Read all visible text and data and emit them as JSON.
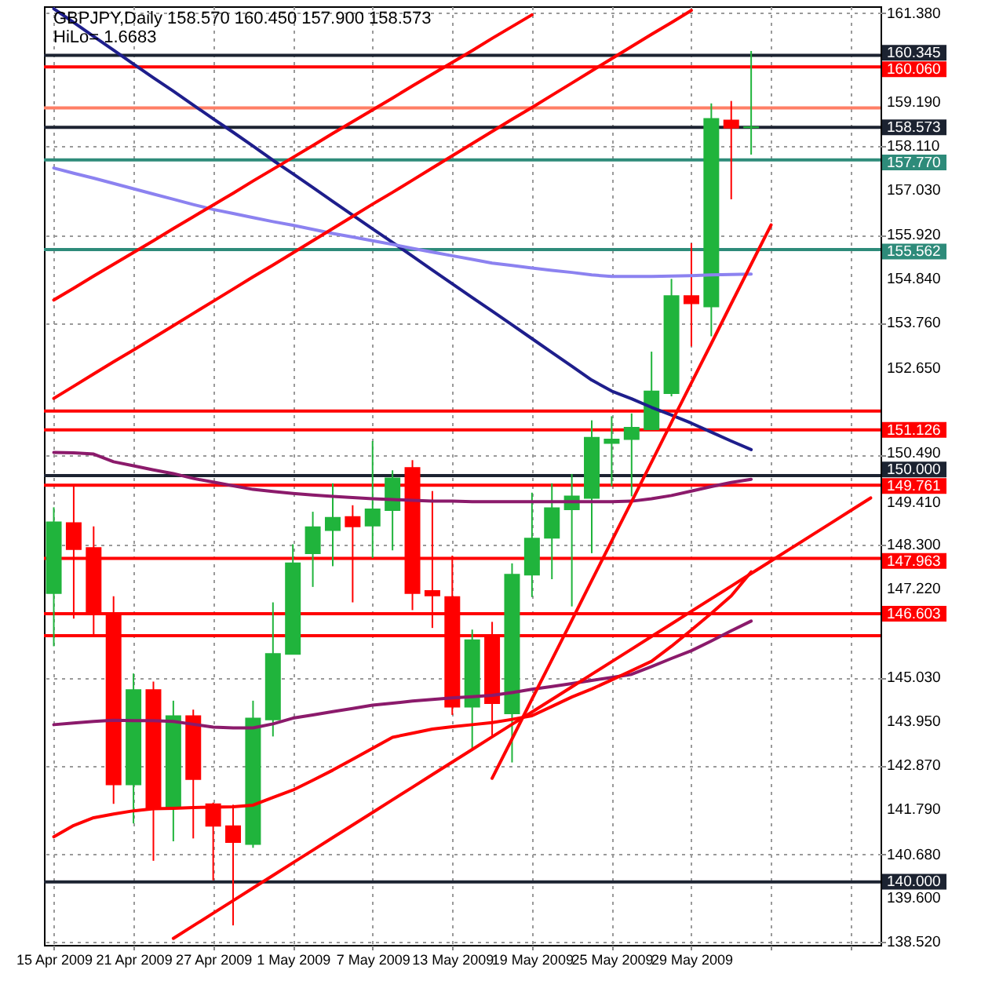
{
  "chart_data": {
    "type": "candlestick",
    "title": "GBPJPY,Daily  158.570 160.450 157.900 158.573",
    "subtitle": "HiLo= 1.6683",
    "categories": [
      "15 Apr 2009",
      null,
      null,
      null,
      "21 Apr 2009",
      null,
      null,
      null,
      "27 Apr 2009",
      null,
      null,
      null,
      "1 May 2009",
      null,
      null,
      null,
      "7 May 2009",
      null,
      null,
      null,
      "13 May 2009",
      null,
      null,
      null,
      "19 May 2009",
      null,
      null,
      null,
      "25 May 2009",
      null,
      null,
      null,
      "29 May 2009",
      null,
      null,
      null,
      null,
      null,
      null,
      null,
      null,
      null
    ],
    "ohlc": [
      [
        147.11,
        149.22,
        145.8,
        148.85
      ],
      [
        148.83,
        149.74,
        146.48,
        148.19
      ],
      [
        148.22,
        148.75,
        146.09,
        146.6
      ],
      [
        146.59,
        147.03,
        141.92,
        142.4
      ],
      [
        142.4,
        145.13,
        141.44,
        144.72
      ],
      [
        144.72,
        144.93,
        140.52,
        141.82
      ],
      [
        141.82,
        144.46,
        141.0,
        144.08
      ],
      [
        144.08,
        144.24,
        141.07,
        142.53
      ],
      [
        141.91,
        141.95,
        140.04,
        141.38
      ],
      [
        141.37,
        141.9,
        138.93,
        140.98
      ],
      [
        140.93,
        144.46,
        140.84,
        144.02
      ],
      [
        144.0,
        146.88,
        143.58,
        145.61
      ],
      [
        145.61,
        148.31,
        145.6,
        147.84
      ],
      [
        148.09,
        149.11,
        147.26,
        148.73
      ],
      [
        148.66,
        149.81,
        147.77,
        148.96
      ],
      [
        148.98,
        149.27,
        146.88,
        148.75
      ],
      [
        148.77,
        150.85,
        147.97,
        149.17
      ],
      [
        149.15,
        150.13,
        148.16,
        149.93
      ],
      [
        150.19,
        150.38,
        146.69,
        147.11
      ],
      [
        147.16,
        149.62,
        146.25,
        147.05
      ],
      [
        147.01,
        148.03,
        144.11,
        144.31
      ],
      [
        144.31,
        146.21,
        143.26,
        145.95
      ],
      [
        146.03,
        146.4,
        143.58,
        144.4
      ],
      [
        144.15,
        147.84,
        142.94,
        147.56
      ],
      [
        147.56,
        149.58,
        147.01,
        148.45
      ],
      [
        148.47,
        149.81,
        147.45,
        149.2
      ],
      [
        149.17,
        150.04,
        146.78,
        149.49
      ],
      [
        149.45,
        151.36,
        148.09,
        150.93
      ],
      [
        150.8,
        151.46,
        149.74,
        150.89
      ],
      [
        150.9,
        151.53,
        149.49,
        151.18
      ],
      [
        151.14,
        153.05,
        151.14,
        152.07
      ],
      [
        152.03,
        154.84,
        151.95,
        154.42
      ],
      [
        154.42,
        155.72,
        153.18,
        154.24
      ],
      [
        154.16,
        159.16,
        153.43,
        158.78
      ],
      [
        158.74,
        159.22,
        156.8,
        158.56
      ],
      [
        158.57,
        160.45,
        157.9,
        158.573
      ],
      null,
      null,
      null,
      null,
      null,
      null
    ],
    "colors": [
      "#20b43c",
      "#ff0000",
      "#ff0000",
      "#ff0000",
      "#20b43c",
      "#ff0000",
      "#20b43c",
      "#ff0000",
      "#ff0000",
      "#ff0000",
      "#20b43c",
      "#20b43c",
      "#20b43c",
      "#20b43c",
      "#20b43c",
      "#ff0000",
      "#20b43c",
      "#20b43c",
      "#ff0000",
      "#ff0000",
      "#ff0000",
      "#20b43c",
      "#ff0000",
      "#20b43c",
      "#20b43c",
      "#20b43c",
      "#20b43c",
      "#20b43c",
      "#20b43c",
      "#20b43c",
      "#20b43c",
      "#20b43c",
      "#ff0000",
      "#20b43c",
      "#ff0000",
      "#20b43c",
      null,
      null,
      null,
      null,
      null,
      null
    ],
    "series": [
      {
        "type": "line",
        "color": "#1e1e8c",
        "values": [
          161.49,
          161.15,
          160.81,
          160.47,
          160.13,
          159.79,
          159.46,
          159.12,
          158.78,
          158.45,
          158.11,
          157.76,
          157.43,
          157.09,
          156.75,
          156.41,
          156.07,
          155.74,
          155.4,
          155.06,
          154.72,
          154.38,
          154.05,
          153.71,
          153.37,
          153.03,
          152.69,
          152.35,
          152.08,
          151.89,
          151.68,
          151.49,
          151.29,
          151.07,
          150.85,
          150.64,
          null,
          null,
          null,
          null,
          null,
          null
        ]
      },
      {
        "type": "line",
        "color": "#8c82f0",
        "values": [
          157.57,
          157.44,
          157.32,
          157.19,
          157.06,
          156.93,
          156.8,
          156.67,
          156.55,
          156.45,
          156.35,
          156.25,
          156.16,
          156.06,
          155.96,
          155.87,
          155.78,
          155.69,
          155.59,
          155.5,
          155.41,
          155.32,
          155.23,
          155.17,
          155.11,
          155.05,
          155.0,
          154.94,
          154.9,
          154.9,
          154.9,
          154.91,
          154.92,
          154.94,
          154.95,
          154.96,
          null,
          null,
          null,
          null,
          null,
          null
        ]
      },
      {
        "type": "line",
        "color": "#8b1a6b",
        "values": [
          150.57,
          150.56,
          150.53,
          150.34,
          150.24,
          150.14,
          150.05,
          149.93,
          149.84,
          149.75,
          149.66,
          149.61,
          149.56,
          149.52,
          149.49,
          149.46,
          149.43,
          149.41,
          149.39,
          149.37,
          149.37,
          149.36,
          149.36,
          149.36,
          149.36,
          149.36,
          149.36,
          149.36,
          149.36,
          149.37,
          149.43,
          149.51,
          149.62,
          149.73,
          149.83,
          149.91,
          null,
          null,
          null,
          null,
          null,
          null
        ]
      },
      {
        "type": "line",
        "color": "#8b1a6b",
        "values": [
          143.87,
          143.91,
          143.95,
          143.98,
          143.97,
          143.97,
          143.95,
          143.88,
          143.81,
          143.79,
          143.79,
          143.89,
          144.03,
          144.11,
          144.19,
          144.27,
          144.35,
          144.4,
          144.45,
          144.49,
          144.53,
          144.56,
          144.59,
          144.66,
          144.74,
          144.81,
          144.88,
          144.96,
          145.03,
          145.11,
          145.3,
          145.5,
          145.69,
          145.93,
          146.18,
          146.42,
          null,
          null,
          null,
          null,
          null,
          null
        ]
      },
      {
        "type": "line",
        "color": "#ff0000",
        "values": [
          141.11,
          141.39,
          141.58,
          141.67,
          141.75,
          141.8,
          141.81,
          141.83,
          141.84,
          141.85,
          141.89,
          142.08,
          142.26,
          142.5,
          142.75,
          143.02,
          143.29,
          143.56,
          143.66,
          143.76,
          143.82,
          143.87,
          143.92,
          144.0,
          144.09,
          144.32,
          144.55,
          144.75,
          144.97,
          145.2,
          145.43,
          145.8,
          146.2,
          146.61,
          147.04,
          147.63,
          null,
          null,
          null,
          null,
          null,
          null
        ]
      },
      {
        "type": "line",
        "color": "#ff0000",
        "values": [
          154.32,
          154.61,
          154.91,
          155.2,
          155.49,
          155.78,
          156.08,
          156.37,
          156.66,
          156.95,
          157.25,
          157.54,
          157.83,
          158.12,
          158.42,
          158.71,
          159.0,
          159.29,
          159.59,
          159.88,
          160.17,
          160.46,
          160.76,
          161.05,
          161.34,
          null,
          null,
          null,
          null,
          null,
          null,
          null,
          null,
          null,
          null,
          null,
          null,
          null,
          null,
          null,
          null,
          null
        ]
      },
      {
        "type": "line",
        "color": "#ff0000",
        "values": [
          151.9,
          152.2,
          152.5,
          152.8,
          153.09,
          153.39,
          153.69,
          153.99,
          154.29,
          154.59,
          154.89,
          155.18,
          155.48,
          155.78,
          156.08,
          156.38,
          156.68,
          156.97,
          157.27,
          157.57,
          157.87,
          158.17,
          158.47,
          158.77,
          159.06,
          159.36,
          159.66,
          159.96,
          160.26,
          160.56,
          160.86,
          161.15,
          161.45,
          null,
          null,
          null,
          null,
          null,
          null,
          null,
          null,
          null
        ]
      },
      {
        "type": "line",
        "color": "#ff0000",
        "values": [
          null,
          null,
          null,
          null,
          null,
          null,
          138.61,
          138.92,
          139.23,
          139.54,
          139.85,
          140.16,
          140.47,
          140.78,
          141.09,
          141.4,
          141.71,
          142.02,
          142.33,
          142.64,
          142.95,
          143.26,
          143.57,
          143.88,
          144.18,
          144.49,
          144.8,
          145.11,
          145.42,
          145.73,
          146.04,
          146.35,
          146.66,
          146.97,
          147.28,
          147.59,
          147.9,
          148.21,
          148.52,
          148.83,
          149.14,
          149.45
        ]
      },
      {
        "type": "line",
        "color": "#ff0000",
        "values": [
          null,
          null,
          null,
          null,
          null,
          null,
          null,
          null,
          null,
          null,
          null,
          null,
          null,
          null,
          null,
          null,
          null,
          null,
          null,
          null,
          null,
          null,
          142.55,
          143.52,
          144.5,
          145.47,
          146.44,
          147.42,
          148.39,
          149.36,
          150.33,
          151.31,
          152.28,
          153.25,
          154.23,
          155.2,
          156.17,
          null,
          null,
          null,
          null,
          null
        ]
      }
    ],
    "ylim": [
      138.45,
      161.55
    ],
    "yticks": [
      {
        "value": 161.38,
        "label": "161.380"
      },
      {
        "value": 159.19,
        "label": "159.190"
      },
      {
        "value": 158.11,
        "label": "158.110"
      },
      {
        "value": 157.03,
        "label": "157.030"
      },
      {
        "value": 155.92,
        "label": "155.920"
      },
      {
        "value": 154.84,
        "label": "154.840"
      },
      {
        "value": 153.76,
        "label": "153.760"
      },
      {
        "value": 152.65,
        "label": "152.650"
      },
      {
        "value": 150.49,
        "label": "150.490"
      },
      {
        "value": 149.41,
        "label": "149.410"
      },
      {
        "value": 148.3,
        "label": "148.300"
      },
      {
        "value": 147.22,
        "label": "147.220"
      },
      {
        "value": 145.03,
        "label": "145.030"
      },
      {
        "value": 143.95,
        "label": "143.950"
      },
      {
        "value": 142.87,
        "label": "142.870"
      },
      {
        "value": 141.79,
        "label": "141.790"
      },
      {
        "value": 140.68,
        "label": "140.680"
      },
      {
        "value": 139.6,
        "label": "139.600"
      },
      {
        "value": 138.52,
        "label": "138.520"
      }
    ],
    "ref_lines": [
      {
        "axis": "y",
        "value": 160.345,
        "label": "160.345",
        "color": "#1c2331"
      },
      {
        "axis": "y",
        "value": 160.06,
        "label": "160.060",
        "color": "#ff0000"
      },
      {
        "axis": "y",
        "value": 159.05,
        "label": null,
        "color": "#ff7f66"
      },
      {
        "axis": "y",
        "value": 158.573,
        "label": "158.573",
        "color": "#1c2331"
      },
      {
        "axis": "y",
        "value": 157.77,
        "label": "157.770",
        "color": "#2e8b7a"
      },
      {
        "axis": "y",
        "value": 155.562,
        "label": "155.562",
        "color": "#2e8b7a"
      },
      {
        "axis": "y",
        "value": 151.59,
        "label": null,
        "color": "#ff0000"
      },
      {
        "axis": "y",
        "value": 151.126,
        "label": "151.126",
        "color": "#ff0000"
      },
      {
        "axis": "y",
        "value": 150.0,
        "label": "150.000",
        "color": "#1c2331"
      },
      {
        "axis": "y",
        "value": 149.761,
        "label": "149.761",
        "color": "#ff0000"
      },
      {
        "axis": "y",
        "value": 147.963,
        "label": "147.963",
        "color": "#ff0000"
      },
      {
        "axis": "y",
        "value": 146.603,
        "label": "146.603",
        "color": "#ff0000"
      },
      {
        "axis": "y",
        "value": 146.06,
        "label": null,
        "color": "#ff0000"
      },
      {
        "axis": "y",
        "value": 140.0,
        "label": "140.000",
        "color": "#1c2331"
      }
    ],
    "grid": true
  }
}
